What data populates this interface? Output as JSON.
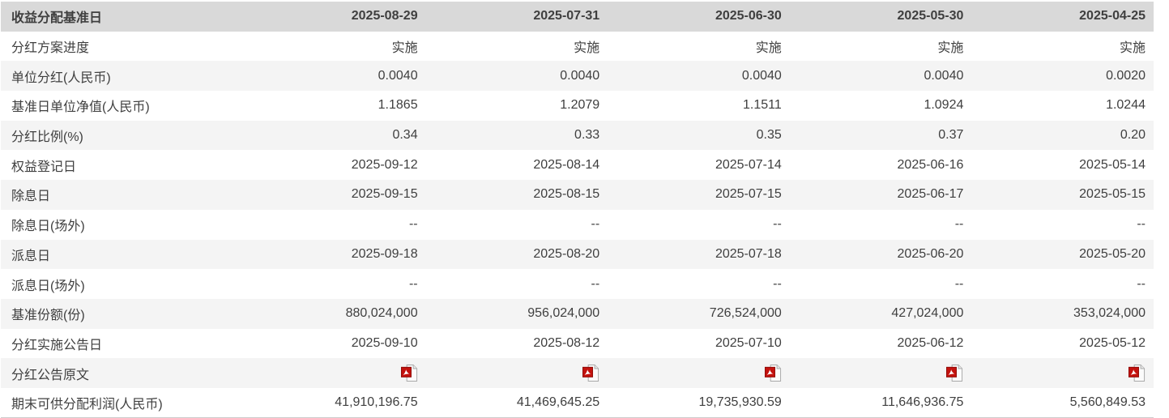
{
  "colors": {
    "header_bg": "#d9d9d9",
    "stripe_bg": "#f4f4f4",
    "text": "#3f3f3f",
    "header_text": "#2f2f2f",
    "bottom_border": "#cdcdcd",
    "pdf_red": "#c3120e",
    "pdf_page_fill": "#fbfbfb",
    "pdf_page_stroke": "#a8a8a8"
  },
  "table": {
    "header": {
      "label": "收益分配基准日",
      "periods": [
        "2025-08-29",
        "2025-07-31",
        "2025-06-30",
        "2025-05-30",
        "2025-04-25"
      ]
    },
    "rows": [
      {
        "label": "分红方案进度",
        "values": [
          "实施",
          "实施",
          "实施",
          "实施",
          "实施"
        ]
      },
      {
        "label": "单位分红(人民币)",
        "values": [
          "0.0040",
          "0.0040",
          "0.0040",
          "0.0040",
          "0.0020"
        ]
      },
      {
        "label": "基准日单位净值(人民币)",
        "values": [
          "1.1865",
          "1.2079",
          "1.1511",
          "1.0924",
          "1.0244"
        ]
      },
      {
        "label": "分红比例(%)",
        "values": [
          "0.34",
          "0.33",
          "0.35",
          "0.37",
          "0.20"
        ]
      },
      {
        "label": "权益登记日",
        "values": [
          "2025-09-12",
          "2025-08-14",
          "2025-07-14",
          "2025-06-16",
          "2025-05-14"
        ]
      },
      {
        "label": "除息日",
        "values": [
          "2025-09-15",
          "2025-08-15",
          "2025-07-15",
          "2025-06-17",
          "2025-05-15"
        ]
      },
      {
        "label": "除息日(场外)",
        "values": [
          "--",
          "--",
          "--",
          "--",
          "--"
        ]
      },
      {
        "label": "派息日",
        "values": [
          "2025-09-18",
          "2025-08-20",
          "2025-07-18",
          "2025-06-20",
          "2025-05-20"
        ]
      },
      {
        "label": "派息日(场外)",
        "values": [
          "--",
          "--",
          "--",
          "--",
          "--"
        ]
      },
      {
        "label": "基准份额(份)",
        "values": [
          "880,024,000",
          "956,024,000",
          "726,524,000",
          "427,024,000",
          "353,024,000"
        ]
      },
      {
        "label": "分红实施公告日",
        "values": [
          "2025-09-10",
          "2025-08-12",
          "2025-07-10",
          "2025-06-12",
          "2025-05-12"
        ]
      },
      {
        "label": "分红公告原文",
        "type": "pdf",
        "icon": "pdf-document-icon",
        "values": [
          "pdf",
          "pdf",
          "pdf",
          "pdf",
          "pdf"
        ]
      },
      {
        "label": "期末可供分配利润(人民币)",
        "values": [
          "41,910,196.75",
          "41,469,645.25",
          "19,735,930.59",
          "11,646,936.75",
          "5,560,849.53"
        ]
      }
    ]
  }
}
